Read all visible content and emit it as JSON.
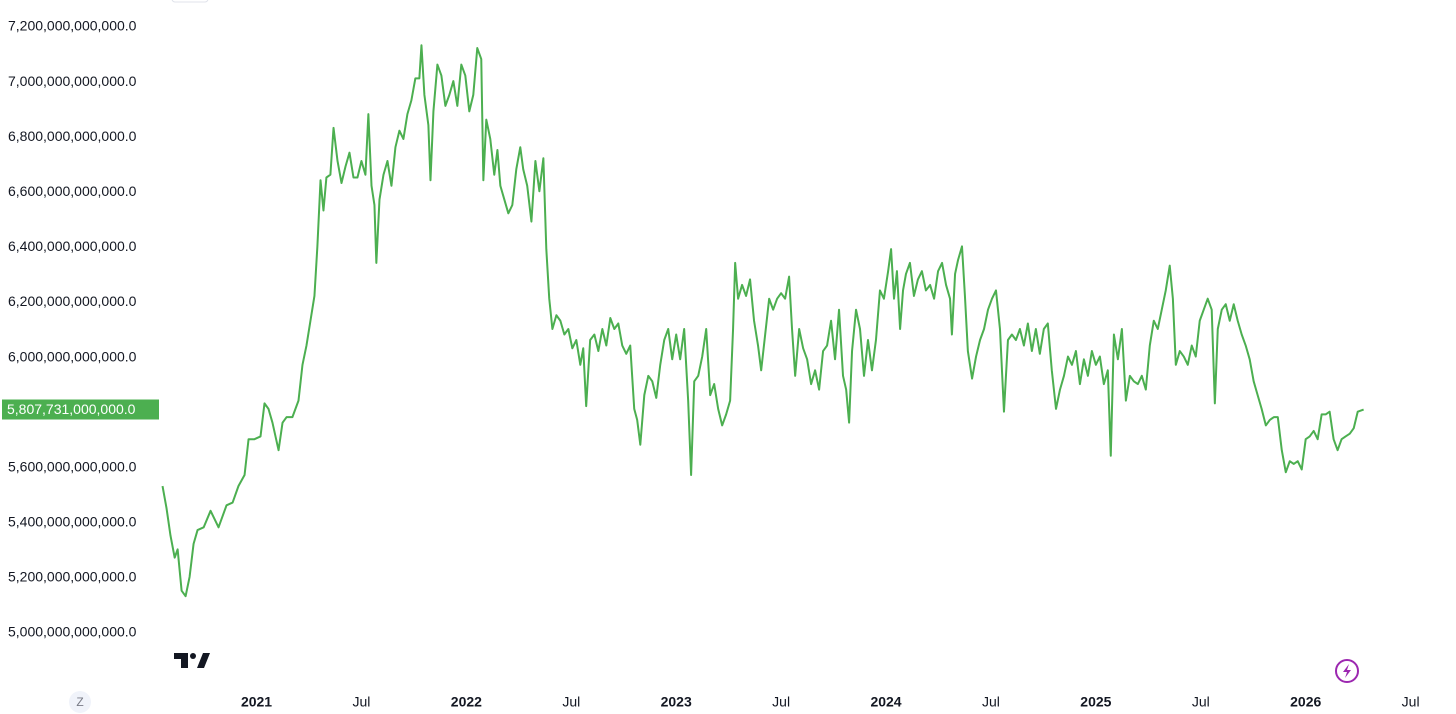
{
  "chart_data": {
    "type": "line",
    "x": [
      2020.552,
      2020.571,
      2020.59,
      2020.61,
      2020.624,
      2020.643,
      2020.662,
      2020.681,
      2020.7,
      2020.719,
      2020.748,
      2020.781,
      2020.8,
      2020.819,
      2020.857,
      2020.886,
      2020.914,
      2020.943,
      2020.962,
      2020.99,
      2021.019,
      2021.038,
      2021.057,
      2021.076,
      2021.105,
      2021.124,
      2021.143,
      2021.171,
      2021.2,
      2021.219,
      2021.238,
      2021.257,
      2021.276,
      2021.29,
      2021.305,
      2021.319,
      2021.333,
      2021.352,
      2021.367,
      2021.386,
      2021.405,
      2021.424,
      2021.443,
      2021.462,
      2021.481,
      2021.5,
      2021.519,
      2021.533,
      2021.548,
      2021.562,
      2021.571,
      2021.586,
      2021.605,
      2021.624,
      2021.643,
      2021.662,
      2021.681,
      2021.7,
      2021.719,
      2021.738,
      2021.757,
      2021.776,
      2021.786,
      2021.8,
      2021.819,
      2021.829,
      2021.843,
      2021.862,
      2021.881,
      2021.9,
      2021.919,
      2021.938,
      2021.957,
      2021.976,
      2021.995,
      2022.014,
      2022.033,
      2022.052,
      2022.071,
      2022.081,
      2022.095,
      2022.114,
      2022.133,
      2022.148,
      2022.162,
      2022.181,
      2022.2,
      2022.219,
      2022.238,
      2022.257,
      2022.271,
      2022.29,
      2022.31,
      2022.329,
      2022.348,
      2022.367,
      2022.381,
      2022.395,
      2022.41,
      2022.429,
      2022.448,
      2022.467,
      2022.486,
      2022.505,
      2022.524,
      2022.543,
      2022.557,
      2022.571,
      2022.59,
      2022.61,
      2022.629,
      2022.648,
      2022.667,
      2022.686,
      2022.705,
      2022.724,
      2022.743,
      2022.762,
      2022.781,
      2022.8,
      2022.814,
      2022.829,
      2022.848,
      2022.867,
      2022.886,
      2022.905,
      2022.924,
      2022.943,
      2022.962,
      2022.981,
      2023.0,
      2023.019,
      2023.038,
      2023.057,
      2023.071,
      2023.086,
      2023.105,
      2023.124,
      2023.143,
      2023.162,
      2023.181,
      2023.2,
      2023.219,
      2023.238,
      2023.257,
      2023.271,
      2023.281,
      2023.295,
      2023.314,
      2023.333,
      2023.352,
      2023.371,
      2023.39,
      2023.405,
      2023.424,
      2023.443,
      2023.462,
      2023.481,
      2023.5,
      2023.519,
      2023.538,
      2023.552,
      2023.567,
      2023.586,
      2023.605,
      2023.624,
      2023.643,
      2023.662,
      2023.681,
      2023.7,
      2023.719,
      2023.738,
      2023.757,
      2023.776,
      2023.795,
      2023.81,
      2023.824,
      2023.838,
      2023.857,
      2023.876,
      2023.895,
      2023.914,
      2023.933,
      2023.952,
      2023.971,
      2023.99,
      2024.01,
      2024.024,
      2024.038,
      2024.052,
      2024.067,
      2024.081,
      2024.095,
      2024.114,
      2024.133,
      2024.152,
      2024.171,
      2024.19,
      2024.21,
      2024.229,
      2024.248,
      2024.267,
      2024.286,
      2024.305,
      2024.314,
      2024.329,
      2024.343,
      2024.362,
      2024.376,
      2024.39,
      2024.41,
      2024.429,
      2024.448,
      2024.467,
      2024.486,
      2024.505,
      2024.524,
      2024.543,
      2024.562,
      2024.581,
      2024.6,
      2024.619,
      2024.638,
      2024.657,
      2024.676,
      2024.695,
      2024.714,
      2024.733,
      2024.752,
      2024.771,
      2024.79,
      2024.81,
      2024.829,
      2024.848,
      2024.867,
      2024.886,
      2024.905,
      2024.924,
      2024.943,
      2024.962,
      2024.981,
      2025.0,
      2025.019,
      2025.038,
      2025.057,
      2025.071,
      2025.086,
      2025.105,
      2025.124,
      2025.143,
      2025.162,
      2025.181,
      2025.2,
      2025.219,
      2025.238,
      2025.257,
      2025.276,
      2025.295,
      2025.314,
      2025.333,
      2025.352,
      2025.367,
      2025.381,
      2025.4,
      2025.419,
      2025.438,
      2025.457,
      2025.476,
      2025.495,
      2025.514,
      2025.533,
      2025.552,
      2025.567,
      2025.581,
      2025.6,
      2025.619,
      2025.638,
      2025.657,
      2025.676,
      2025.695,
      2025.714,
      2025.733,
      2025.752,
      2025.771,
      2025.79,
      2025.81,
      2025.829,
      2025.848,
      2025.867,
      2025.886,
      2025.905,
      2025.924,
      2025.943,
      2025.962,
      2025.981,
      2026.0,
      2026.019,
      2026.038,
      2026.057,
      2026.076,
      2026.095,
      2026.114,
      2026.133,
      2026.152,
      2026.171,
      2026.19,
      2026.21,
      2026.229,
      2026.248,
      2026.276
    ],
    "series": [
      {
        "color": "#4caf50",
        "values": [
          5530000000000.0,
          5450000000000.0,
          5350000000000.0,
          5270000000000.0,
          5300000000000.0,
          5150000000000.0,
          5130000000000.0,
          5200000000000.0,
          5320000000000.0,
          5370000000000.0,
          5380000000000.0,
          5440000000000.0,
          5410000000000.0,
          5380000000000.0,
          5460000000000.0,
          5470000000000.0,
          5530000000000.0,
          5570000000000.0,
          5700000000000.0,
          5700000000000.0,
          5710000000000.0,
          5830000000000.0,
          5810000000000.0,
          5760000000000.0,
          5660000000000.0,
          5760000000000.0,
          5780000000000.0,
          5780000000000.0,
          5840000000000.0,
          5970000000000.0,
          6040000000000.0,
          6130000000000.0,
          6220000000000.0,
          6400000000000.0,
          6640000000000.0,
          6530000000000.0,
          6650000000000.0,
          6660000000000.0,
          6830000000000.0,
          6710000000000.0,
          6630000000000.0,
          6690000000000.0,
          6740000000000.0,
          6650000000000.0,
          6650000000000.0,
          6710000000000.0,
          6660000000000.0,
          6880000000000.0,
          6620000000000.0,
          6550000000000.0,
          6340000000000.0,
          6570000000000.0,
          6660000000000.0,
          6710000000000.0,
          6620000000000.0,
          6760000000000.0,
          6820000000000.0,
          6790000000000.0,
          6880000000000.0,
          6930000000000.0,
          7010000000000.0,
          7010000000000.0,
          7130000000000.0,
          6950000000000.0,
          6840000000000.0,
          6640000000000.0,
          6890000000000.0,
          7060000000000.0,
          7020000000000.0,
          6910000000000.0,
          6950000000000.0,
          7000000000000.0,
          6910000000000.0,
          7060000000000.0,
          7020000000000.0,
          6890000000000.0,
          6950000000000.0,
          7120000000000.0,
          7080000000000.0,
          6640000000000.0,
          6860000000000.0,
          6790000000000.0,
          6660000000000.0,
          6750000000000.0,
          6620000000000.0,
          6570000000000.0,
          6520000000000.0,
          6550000000000.0,
          6680000000000.0,
          6760000000000.0,
          6680000000000.0,
          6620000000000.0,
          6490000000000.0,
          6710000000000.0,
          6600000000000.0,
          6720000000000.0,
          6390000000000.0,
          6210000000000.0,
          6100000000000.0,
          6150000000000.0,
          6130000000000.0,
          6080000000000.0,
          6100000000000.0,
          6030000000000.0,
          6060000000000.0,
          5970000000000.0,
          6030000000000.0,
          5820000000000.0,
          6060000000000.0,
          6080000000000.0,
          6020000000000.0,
          6100000000000.0,
          6040000000000.0,
          6140000000000.0,
          6100000000000.0,
          6120000000000.0,
          6040000000000.0,
          6010000000000.0,
          6040000000000.0,
          5810000000000.0,
          5770000000000.0,
          5680000000000.0,
          5860000000000.0,
          5930000000000.0,
          5910000000000.0,
          5850000000000.0,
          5970000000000.0,
          6060000000000.0,
          6100000000000.0,
          5990000000000.0,
          6080000000000.0,
          5990000000000.0,
          6100000000000.0,
          5840000000000.0,
          5570000000000.0,
          5910000000000.0,
          5930000000000.0,
          6000000000000.0,
          6100000000000.0,
          5860000000000.0,
          5900000000000.0,
          5810000000000.0,
          5750000000000.0,
          5790000000000.0,
          5840000000000.0,
          6100000000000.0,
          6340000000000.0,
          6210000000000.0,
          6260000000000.0,
          6220000000000.0,
          6280000000000.0,
          6130000000000.0,
          6040000000000.0,
          5950000000000.0,
          6080000000000.0,
          6210000000000.0,
          6170000000000.0,
          6210000000000.0,
          6230000000000.0,
          6210000000000.0,
          6290000000000.0,
          6100000000000.0,
          5930000000000.0,
          6100000000000.0,
          6030000000000.0,
          5990000000000.0,
          5900000000000.0,
          5950000000000.0,
          5880000000000.0,
          6020000000000.0,
          6040000000000.0,
          6130000000000.0,
          5990000000000.0,
          6170000000000.0,
          5930000000000.0,
          5880000000000.0,
          5760000000000.0,
          6020000000000.0,
          6170000000000.0,
          6100000000000.0,
          5930000000000.0,
          6060000000000.0,
          5950000000000.0,
          6060000000000.0,
          6240000000000.0,
          6210000000000.0,
          6310000000000.0,
          6390000000000.0,
          6210000000000.0,
          6310000000000.0,
          6100000000000.0,
          6240000000000.0,
          6300000000000.0,
          6340000000000.0,
          6220000000000.0,
          6280000000000.0,
          6310000000000.0,
          6240000000000.0,
          6260000000000.0,
          6210000000000.0,
          6310000000000.0,
          6340000000000.0,
          6260000000000.0,
          6210000000000.0,
          6080000000000.0,
          6300000000000.0,
          6350000000000.0,
          6400000000000.0,
          6220000000000.0,
          6020000000000.0,
          5920000000000.0,
          6000000000000.0,
          6060000000000.0,
          6100000000000.0,
          6170000000000.0,
          6210000000000.0,
          6240000000000.0,
          6100000000000.0,
          5800000000000.0,
          6060000000000.0,
          6080000000000.0,
          6060000000000.0,
          6100000000000.0,
          6040000000000.0,
          6120000000000.0,
          6020000000000.0,
          6100000000000.0,
          6010000000000.0,
          6100000000000.0,
          6120000000000.0,
          5950000000000.0,
          5810000000000.0,
          5880000000000.0,
          5930000000000.0,
          6000000000000.0,
          5970000000000.0,
          6020000000000.0,
          5900000000000.0,
          5990000000000.0,
          5930000000000.0,
          6020000000000.0,
          5970000000000.0,
          6000000000000.0,
          5900000000000.0,
          5950000000000.0,
          5640000000000.0,
          6080000000000.0,
          5990000000000.0,
          6100000000000.0,
          5840000000000.0,
          5930000000000.0,
          5910000000000.0,
          5900000000000.0,
          5930000000000.0,
          5880000000000.0,
          6040000000000.0,
          6130000000000.0,
          6100000000000.0,
          6170000000000.0,
          6240000000000.0,
          6330000000000.0,
          6210000000000.0,
          5970000000000.0,
          6020000000000.0,
          6000000000000.0,
          5970000000000.0,
          6040000000000.0,
          6000000000000.0,
          6130000000000.0,
          6170000000000.0,
          6210000000000.0,
          6170000000000.0,
          5830000000000.0,
          6100000000000.0,
          6170000000000.0,
          6190000000000.0,
          6130000000000.0,
          6190000000000.0,
          6130000000000.0,
          6080000000000.0,
          6040000000000.0,
          5990000000000.0,
          5910000000000.0,
          5860000000000.0,
          5810000000000.0,
          5750000000000.0,
          5770000000000.0,
          5780000000000.0,
          5780000000000.0,
          5660000000000.0,
          5580000000000.0,
          5620000000000.0,
          5610000000000.0,
          5620000000000.0,
          5590000000000.0,
          5700000000000.0,
          5710000000000.0,
          5730000000000.0,
          5700000000000.0,
          5790000000000.0,
          5790000000000.0,
          5800000000000.0,
          5700000000000.0,
          5660000000000.0,
          5700000000000.0,
          5710000000000.0,
          5720000000000.0,
          5740000000000.0,
          5800000000000.0,
          5807731000000
        ]
      }
    ],
    "last_value_label": "5,807,731,000,000.0",
    "xlim": [
      2020.54,
      2026.64
    ],
    "xticks": [
      2021,
      {
        "value": 2021.5,
        "label": "Jul"
      },
      2022,
      {
        "value": 2022.5,
        "label": "Jul"
      },
      2023,
      {
        "value": 2023.5,
        "label": "Jul"
      },
      2024,
      {
        "value": 2024.5,
        "label": "Jul"
      },
      2025,
      {
        "value": 2025.5,
        "label": "Jul"
      },
      2026,
      {
        "value": 2026.5,
        "label": "Jul"
      }
    ],
    "ylim": [
      4800000000000.0,
      7300000000000.0
    ],
    "yticks": [
      {
        "value": 5000000000000.0,
        "label": "5,000,000,000,000.0"
      },
      {
        "value": 5200000000000.0,
        "label": "5,200,000,000,000.0"
      },
      {
        "value": 5400000000000.0,
        "label": "5,400,000,000,000.0"
      },
      {
        "value": 5600000000000.0,
        "label": "5,600,000,000,000.0"
      },
      {
        "value": 6000000000000.0,
        "label": "6,000,000,000,000.0"
      },
      {
        "value": 6200000000000.0,
        "label": "6,200,000,000,000.0"
      },
      {
        "value": 6400000000000.0,
        "label": "6,400,000,000,000.0"
      },
      {
        "value": 6600000000000.0,
        "label": "6,600,000,000,000.0"
      },
      {
        "value": 6800000000000.0,
        "label": "6,800,000,000,000.0"
      },
      {
        "value": 7000000000000.0,
        "label": "7,000,000,000,000.0"
      },
      {
        "value": 7200000000000.0,
        "label": "7,200,000,000,000.0"
      }
    ],
    "grid": false
  },
  "ui": {
    "zoom_button": "Z"
  }
}
